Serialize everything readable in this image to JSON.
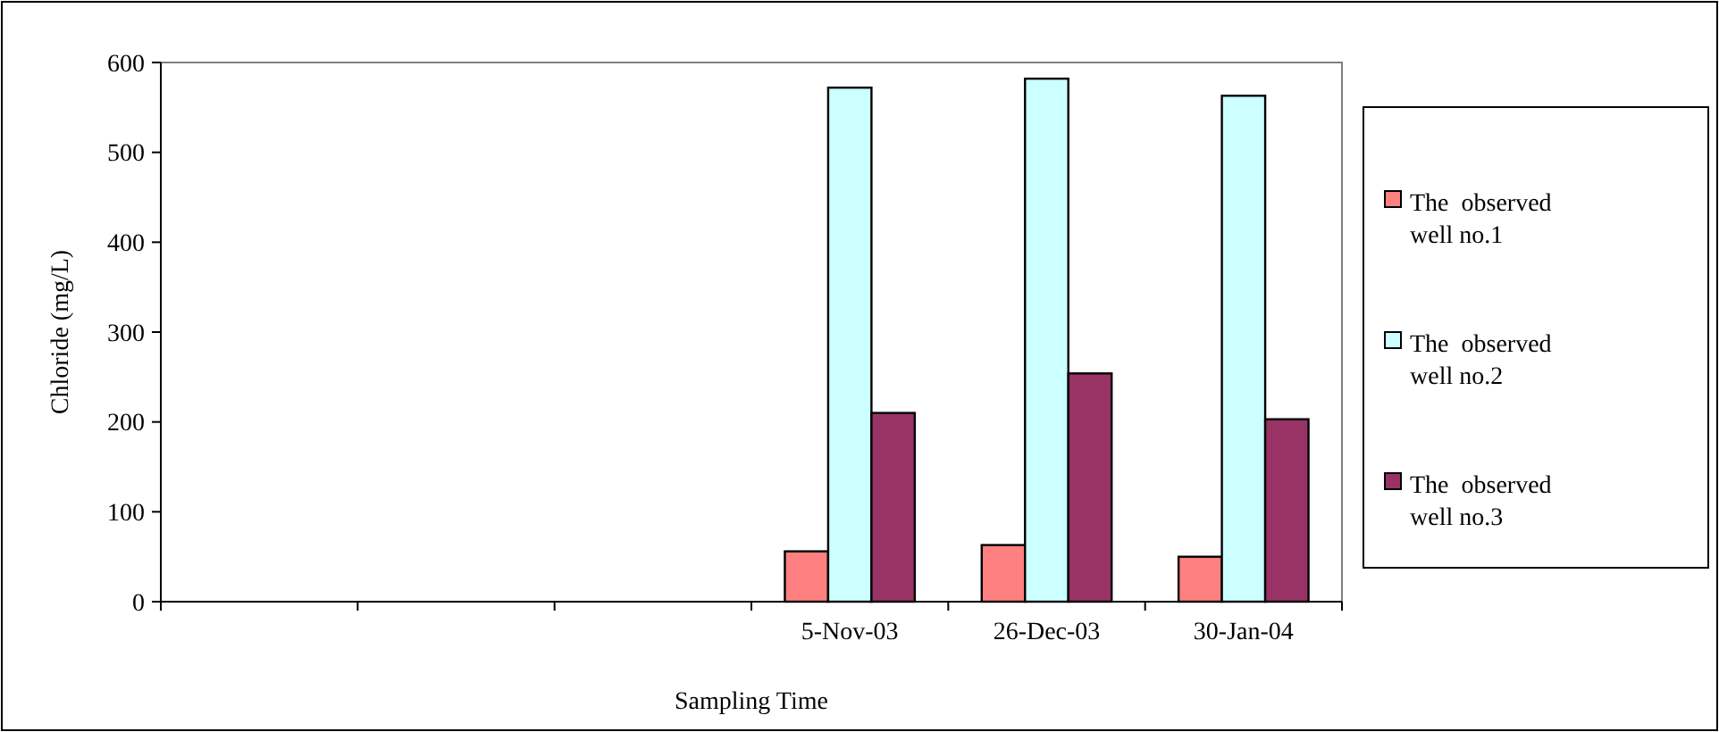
{
  "chart_data": {
    "type": "bar",
    "xlabel": "Sampling Time",
    "ylabel": "Chloride (mg/L)",
    "categories": [
      null,
      null,
      null,
      "5-Nov-03",
      "26-Dec-03",
      "30-Jan-04"
    ],
    "series": [
      {
        "name": "The  observed well no.1",
        "color": "#ff8080",
        "values": [
          null,
          null,
          null,
          56,
          63,
          50
        ]
      },
      {
        "name": "The  observed well no.2",
        "color": "#ccffff",
        "values": [
          null,
          null,
          null,
          572,
          582,
          563
        ]
      },
      {
        "name": "The  observed well no.3",
        "color": "#993366",
        "values": [
          null,
          null,
          null,
          210,
          254,
          203
        ]
      }
    ],
    "ylim": [
      0,
      600
    ],
    "yticks": [
      0,
      100,
      200,
      300,
      400,
      500,
      600
    ],
    "grid": false,
    "legend": "right"
  }
}
